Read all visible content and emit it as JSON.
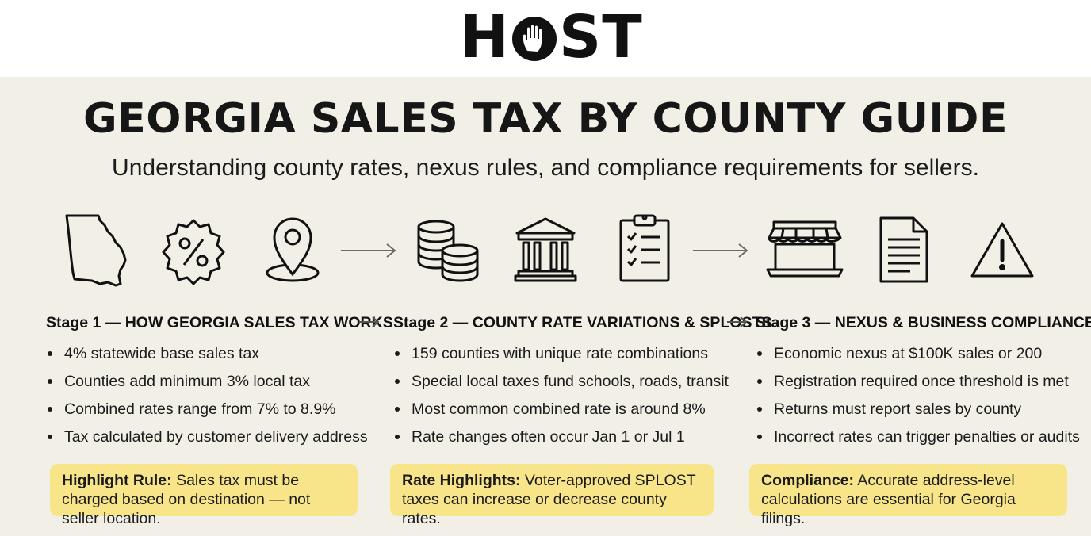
{
  "logo": {
    "text_left": "H",
    "text_right": "ST"
  },
  "title": "GEORGIA SALES TAX BY COUNTY GUIDE",
  "subtitle": "Understanding county rates, nexus rules, and compliance requirements for sellers.",
  "icons": [
    "georgia-map-icon",
    "percent-badge-icon",
    "location-pin-icon",
    "arrow-right-icon",
    "coin-stacks-icon",
    "bank-building-icon",
    "checklist-clipboard-icon",
    "arrow-right-icon",
    "storefront-laptop-icon",
    "document-icon",
    "warning-triangle-icon"
  ],
  "stages": [
    {
      "title": "Stage 1 — HOW GEORGIA SALES TAX WORKS",
      "bullets": [
        "4% statewide base sales tax",
        "Counties add minimum 3% local tax",
        "Combined rates range from 7% to 8.9%",
        "Tax calculated by customer delivery address"
      ],
      "note_label": "Highlight Rule:",
      "note_text": " Sales tax must be charged based on destination — not seller location."
    },
    {
      "title": "Stage 2 — COUNTY RATE VARIATIONS & SPLOSTS",
      "bullets": [
        "159 counties with unique rate combinations",
        "Special local taxes fund schools, roads, transit",
        "Most common combined rate is around 8%",
        "Rate changes often occur Jan 1 or Jul 1"
      ],
      "note_label": "Rate Highlights:",
      "note_text": " Voter-approved SPLOST taxes can increase or decrease county rates."
    },
    {
      "title": "Stage 3 — NEXUS & BUSINESS COMPLIANCE",
      "bullets": [
        "Economic nexus at $100K sales or 200",
        "Registration required once threshold is met",
        "Returns must report sales by county",
        "Incorrect rates can trigger penalties or audits"
      ],
      "note_label": "Compliance:",
      "note_text": " Accurate address-level calculations are essential for Georgia filings."
    }
  ],
  "colors": {
    "panel_background": "#f2efe7",
    "note_background": "#f8e58a",
    "text": "#111111",
    "arrow": "#6b6b6b"
  }
}
